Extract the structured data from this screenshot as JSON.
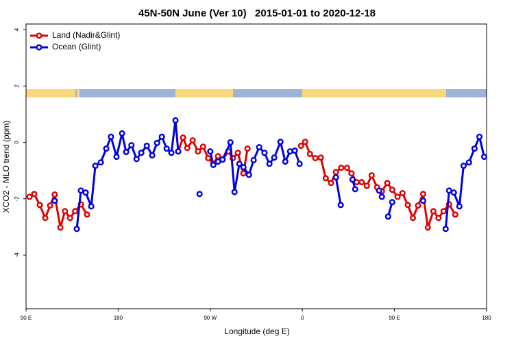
{
  "chart_data": {
    "type": "line",
    "title": "45N-50N June (Ver 10)   2015-01-01 to 2020-12-18",
    "xlabel": "Longitude (deg E)",
    "ylabel": "XCO2 - MLO trend (ppm)",
    "xlim": [
      90,
      540
    ],
    "xticks": [
      {
        "value": 90,
        "label": "90 E"
      },
      180,
      {
        "value": 270,
        "label": "90 W"
      },
      {
        "value": 360,
        "label": "0"
      },
      {
        "value": 450,
        "label": "90 E"
      },
      {
        "value": 540,
        "label": "180"
      }
    ],
    "ylim": [
      -5.9,
      4.2
    ],
    "yticks": [
      4,
      2,
      0,
      -2,
      -4
    ],
    "legend": "top-left",
    "series": [
      {
        "name": "Land (Nadir&Glint)",
        "color": "#e00000",
        "x": [
          93.4,
          98,
          103.4,
          108.8,
          113.5,
          118,
          123.5,
          128,
          133,
          138,
          143.6,
          149.6,
          null,
          238.7,
          243.4,
          247.5,
          252.8,
          258,
          263,
          268,
          273,
          277.6,
          282,
          287.7,
          292,
          297,
          302.4,
          306.4,
          null,
          358.7,
          362.7,
          367.4,
          372.7,
          378,
          382.8,
          388,
          392.8,
          398,
          403.6,
          408,
          413,
          418,
          423,
          427.7,
          433,
          437.7,
          443,
          447.8,
          453,
          457.8,
          463,
          468,
          473,
          478,
          482.6,
          488,
          493,
          498,
          503.4,
          509.4
        ],
        "values": [
          -1.93,
          -1.83,
          -2.22,
          -2.68,
          -2.24,
          -1.85,
          -3.02,
          -2.44,
          -2.68,
          -2.44,
          -2.2,
          -2.56,
          null,
          -0.32,
          0.17,
          -0.2,
          0.07,
          -0.32,
          -0.15,
          -0.56,
          -0.76,
          -0.49,
          -0.61,
          -0.32,
          -0.56,
          -0.37,
          -1.1,
          -0.22,
          null,
          -0.12,
          0.02,
          -0.41,
          -0.56,
          -0.54,
          -1.27,
          -1.44,
          -1.05,
          -0.9,
          -0.9,
          -1.1,
          -1.41,
          -1.41,
          -1.54,
          -1.17,
          -1.59,
          -1.73,
          -1.44,
          -1.68,
          -1.93,
          -1.8,
          -2.22,
          -2.68,
          -2.24,
          -1.83,
          -3.02,
          -2.44,
          -2.68,
          -2.44,
          -2.2,
          -2.56
        ]
      },
      {
        "name": "Ocean (Glint)",
        "color": "#0000e0",
        "x": [
          118,
          null,
          139.6,
          143.6,
          148.3,
          153.7,
          157.7,
          163,
          168.4,
          173,
          178.4,
          183.8,
          187.8,
          193,
          198,
          202.6,
          208,
          213.3,
          218,
          222.7,
          227.4,
          232,
          236,
          238.7,
          null,
          259.5,
          null,
          270,
          273,
          277.6,
          282,
          289.7,
          293.7,
          298.4,
          302.4,
          307.8,
          312.4,
          317.8,
          323,
          327.8,
          332.5,
          338.6,
          343.3,
          348,
          352.6,
          357.3,
          null,
          392.8,
          397.5,
          null,
          409,
          411.6,
          null,
          435,
          437.7,
          null,
          443.8,
          447.8,
          null,
          478,
          null,
          500,
          503.4,
          508,
          513.4,
          517.5,
          522.8,
          528.2,
          533,
          537.6
        ],
        "values": [
          -2.07,
          null,
          -3.07,
          -1.71,
          -1.78,
          -2.27,
          -0.83,
          -0.71,
          -0.22,
          0.2,
          -0.51,
          0.32,
          -0.34,
          -0.1,
          -0.59,
          -0.37,
          -0.12,
          -0.46,
          -0.02,
          0.2,
          -0.22,
          -0.37,
          0.78,
          -0.32,
          null,
          -1.83,
          null,
          -0.32,
          -0.8,
          -0.68,
          -0.61,
          0,
          -1.76,
          -0.76,
          -0.88,
          -1.15,
          -0.63,
          -0.17,
          -0.37,
          -0.76,
          -0.54,
          0.02,
          -0.68,
          -0.32,
          -0.29,
          -0.76,
          null,
          -1.24,
          -2.22,
          null,
          -1.32,
          -1.66,
          null,
          -1.71,
          -1.93,
          null,
          -2.63,
          -2.12,
          null,
          -2.07,
          null,
          -3.07,
          -1.71,
          -1.78,
          -2.27,
          -0.83,
          -0.71,
          -0.22,
          0.2,
          -0.51
        ]
      }
    ]
  }
}
